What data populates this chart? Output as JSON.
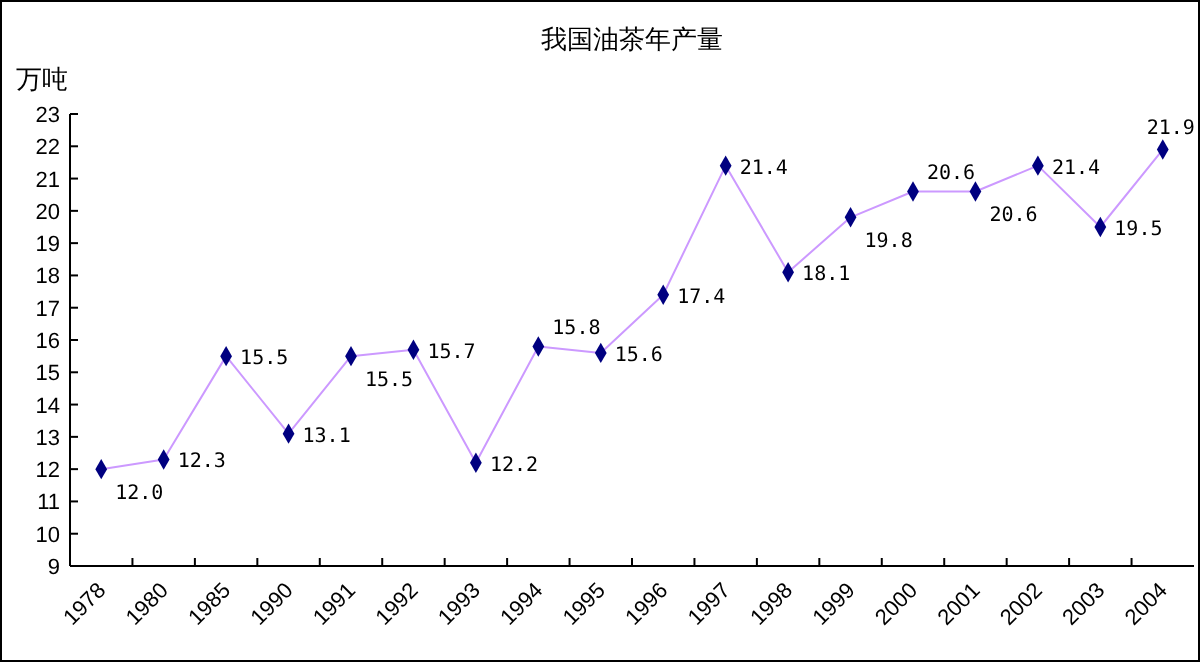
{
  "chart_data": {
    "type": "line",
    "title": "我国油茶年产量",
    "ylabel": "万吨",
    "categories": [
      "1978",
      "1980",
      "1985",
      "1990",
      "1991",
      "1992",
      "1993",
      "1994",
      "1995",
      "1996",
      "1997",
      "1998",
      "1999",
      "2000",
      "2001",
      "2002",
      "2003",
      "2004"
    ],
    "series": [
      {
        "color": "#cc99ff",
        "values": [
          12.0,
          12.3,
          15.5,
          13.1,
          15.5,
          15.7,
          12.2,
          15.8,
          15.6,
          17.4,
          21.4,
          18.1,
          19.8,
          20.6,
          20.6,
          21.4,
          19.5,
          21.9
        ],
        "value_labels": [
          "12.0",
          "12.3",
          "15.5",
          "13.1",
          "15.5",
          "15.7",
          "12.2",
          "15.8",
          "15.6",
          "17.4",
          "21.4",
          "18.1",
          "19.8",
          "20.6",
          "20.6",
          "21.4",
          "19.5",
          "21.9"
        ]
      }
    ],
    "marker": "diamond",
    "ylim": [
      9,
      23
    ],
    "yticks": [
      9,
      10,
      11,
      12,
      13,
      14,
      15,
      16,
      17,
      18,
      19,
      20,
      21,
      22,
      23
    ],
    "grid": false
  }
}
